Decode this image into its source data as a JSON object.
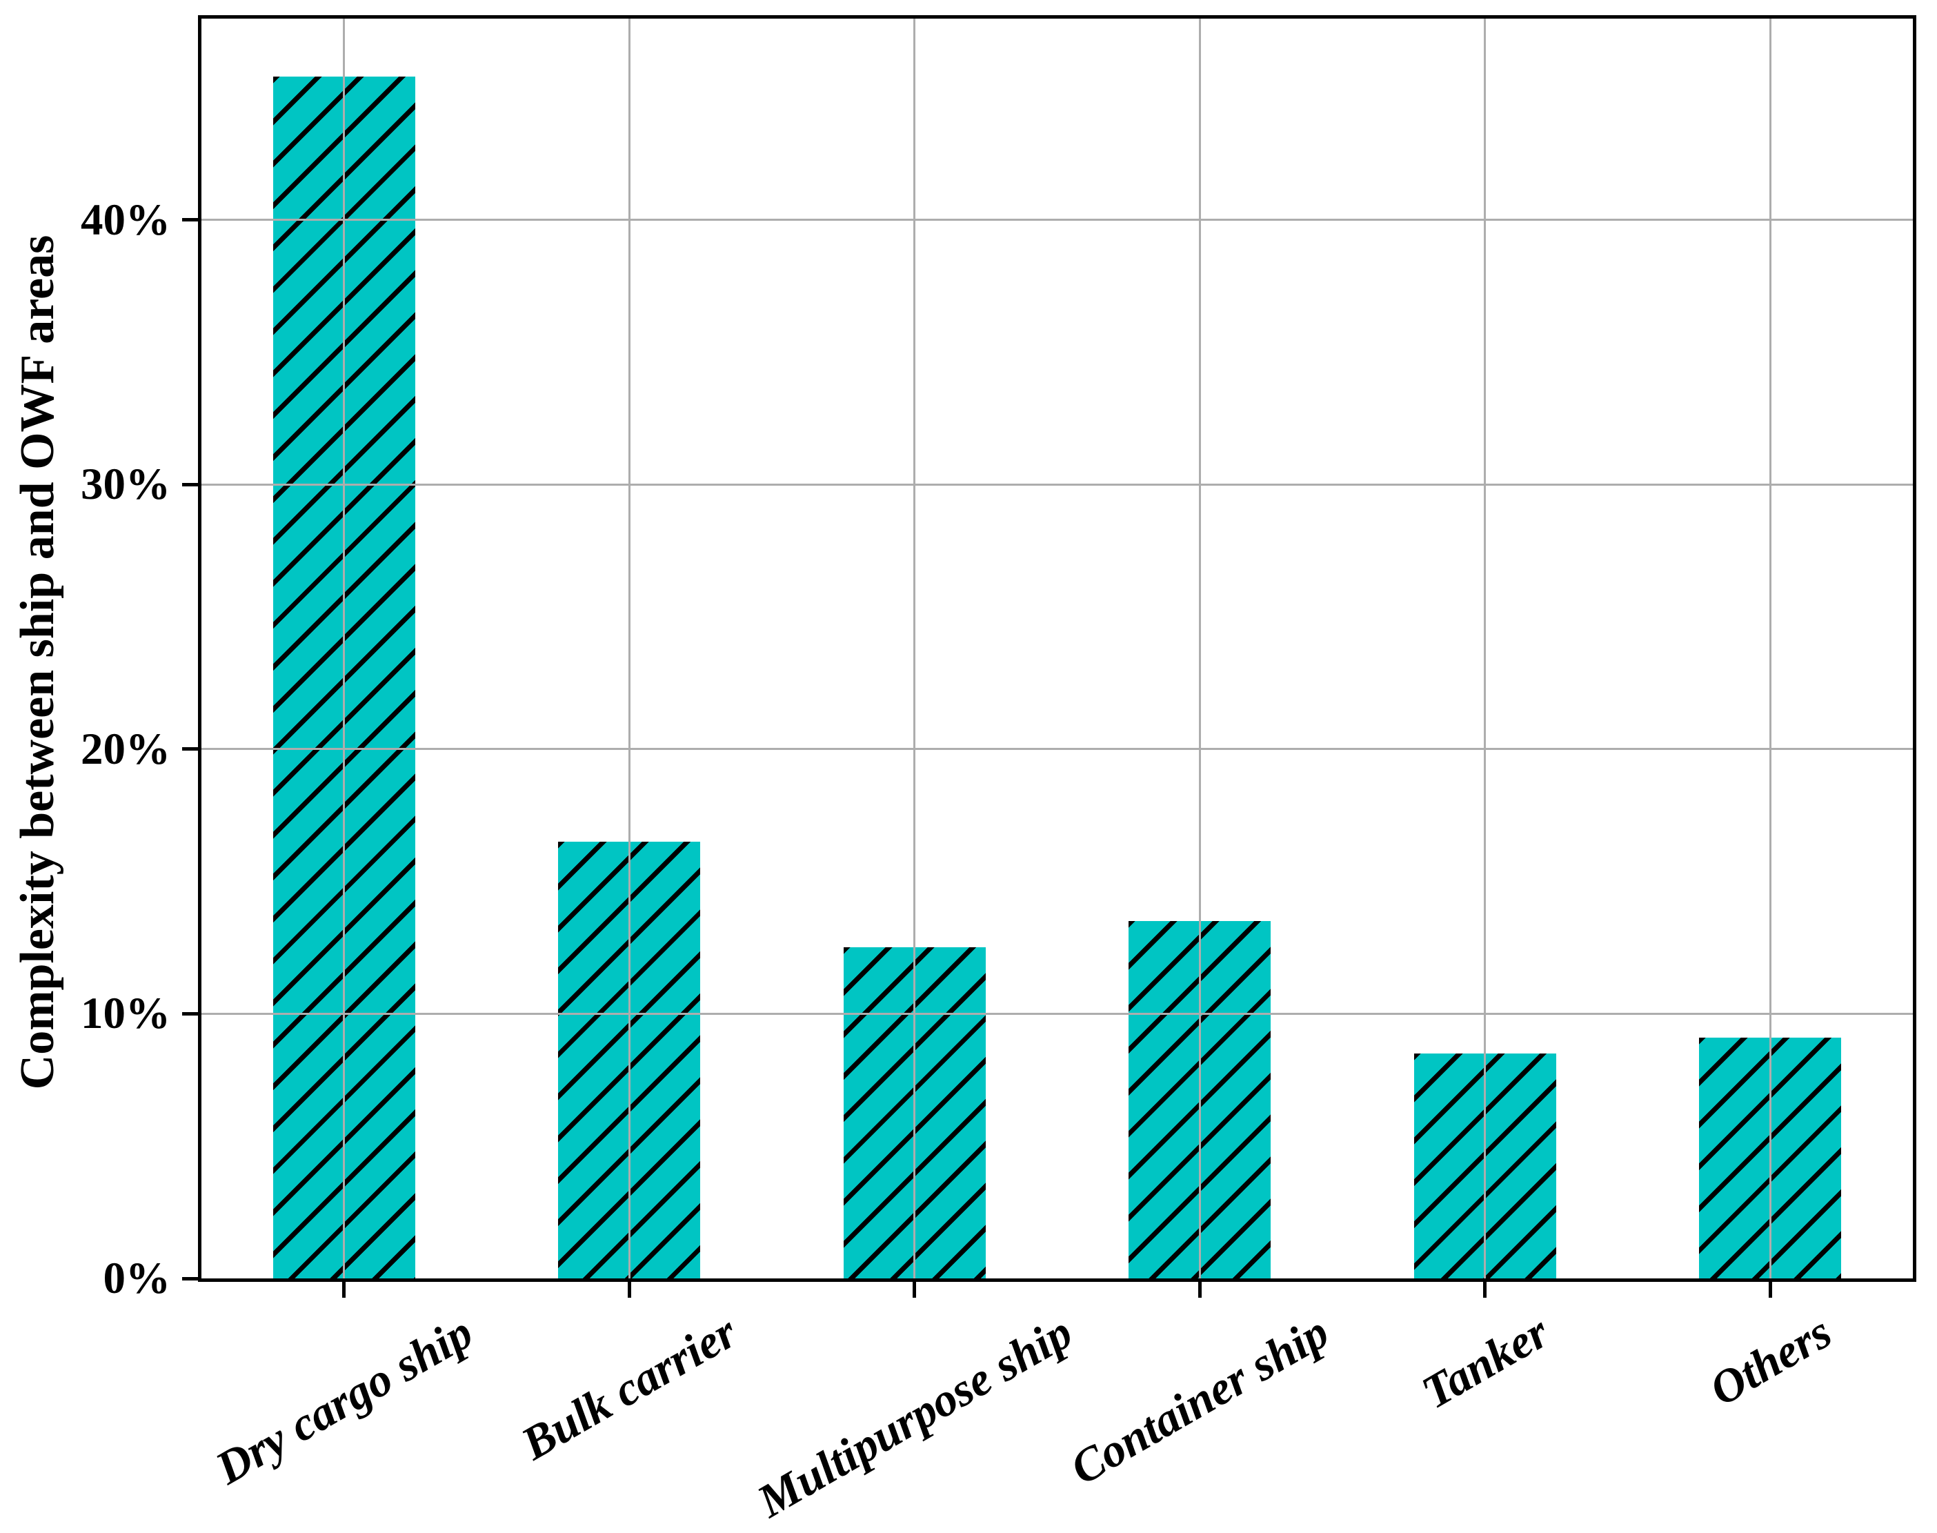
{
  "chart_data": {
    "type": "bar",
    "title": "",
    "categories": [
      "Dry cargo ship",
      "Bulk carrier",
      "Multipurpose ship",
      "Container ship",
      "Tanker",
      "Others"
    ],
    "values": [
      45.4,
      16.5,
      12.5,
      13.5,
      8.5,
      9.1
    ],
    "unit": "%",
    "xlabel": "",
    "ylabel": "Complexity between ship and OWF areas",
    "ytick_labels": [
      "0%",
      "10%",
      "20%",
      "30%",
      "40%"
    ],
    "ytick_values": [
      0,
      10,
      20,
      30,
      40
    ],
    "ylim": [
      0,
      47.6
    ],
    "grid": true,
    "legend": false,
    "bar_color": "#00C5C3",
    "hatch_pattern": "diagonal-forward-slash",
    "hatch_color": "#000000",
    "gridline_color": "#ADADAD",
    "axis_color": "#000000",
    "x_label_rotation_deg": 30
  }
}
